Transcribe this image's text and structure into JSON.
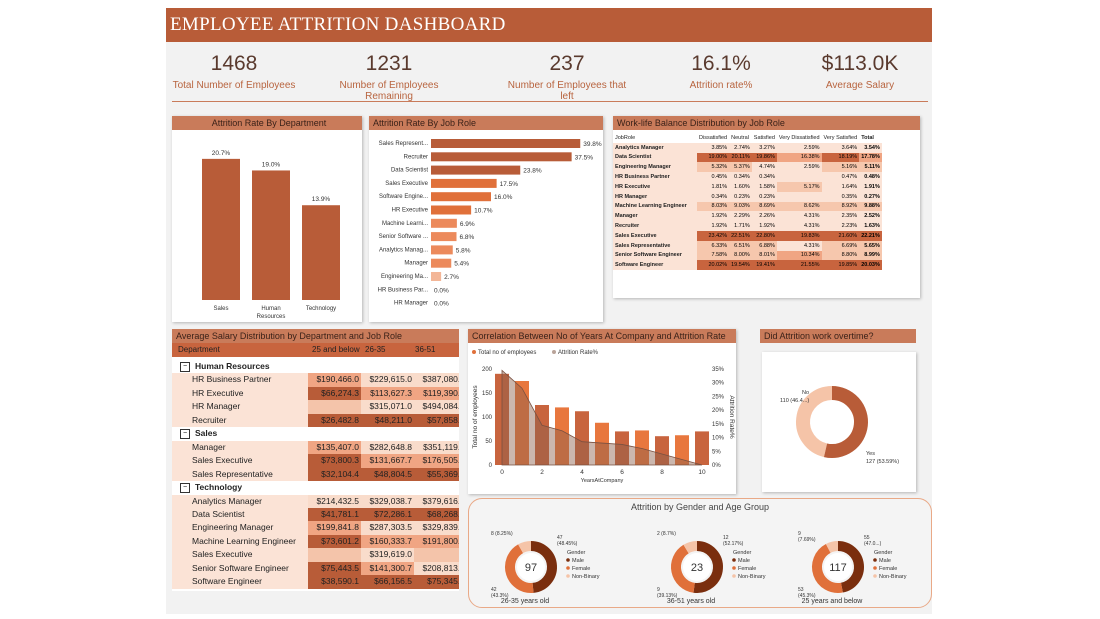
{
  "header": {
    "title": "EMPLOYEE ATTRITION DASHBOARD"
  },
  "kpis": [
    {
      "value": "1468",
      "label": "Total Number of Employees"
    },
    {
      "value": "1231",
      "label": "Number of Employees Remaining"
    },
    {
      "value": "237",
      "label": "Number of Employees that left"
    },
    {
      "value": "16.1%",
      "label": "Attrition rate%"
    },
    {
      "value": "$113.0K",
      "label": "Average Salary"
    }
  ],
  "colors": {
    "accent": "#b85c38",
    "dark": "#7a2e0e",
    "mid": "#e0703a",
    "light": "#f5c4a8",
    "pale": "#fbe3d6"
  },
  "chart_data": [
    {
      "type": "bar",
      "title": "Attrition Rate By Department",
      "categories": [
        "Sales",
        "Human Resources",
        "Technology"
      ],
      "category_lines": [
        [
          "Sales"
        ],
        [
          "Human",
          "Resources"
        ],
        [
          "Technology"
        ]
      ],
      "values": [
        20.7,
        19.0,
        13.9
      ],
      "labels": [
        "20.7%",
        "19.0%",
        "13.9%"
      ]
    },
    {
      "type": "bar",
      "orientation": "horizontal",
      "title": "Attrition Rate By Job Role",
      "categories": [
        "Sales Represent...",
        "Recruiter",
        "Data Scientist",
        "Sales Executive",
        "Software Engine...",
        "HR Executive",
        "Machine Learni...",
        "Senior Software ...",
        "Analytics Manag...",
        "Manager",
        "Engineering Ma...",
        "HR Business Par...",
        "HR Manager"
      ],
      "values": [
        39.8,
        37.5,
        23.8,
        17.5,
        16.0,
        10.7,
        6.9,
        6.8,
        5.8,
        5.4,
        2.7,
        0.0,
        0.0
      ],
      "labels": [
        "39.8%",
        "37.5%",
        "23.8%",
        "17.5%",
        "16.0%",
        "10.7%",
        "6.9%",
        "6.8%",
        "5.8%",
        "5.4%",
        "2.7%",
        "0.0%",
        "0.0%"
      ]
    },
    {
      "type": "table",
      "title": "Work-life Balance Distribution by Job Role",
      "columns": [
        "JobRole",
        "Dissatisfied",
        "Neutral",
        "Satisfied",
        "Very Dissatisfied",
        "Very Satisfied",
        "Total"
      ],
      "rows": [
        [
          "Analytics Manager",
          "3.85%",
          "2.74%",
          "3.27%",
          "2.59%",
          "3.64%",
          "3.54%"
        ],
        [
          "Data Scientist",
          "19.00%",
          "20.11%",
          "19.86%",
          "16.38%",
          "18.19%",
          "17.78%"
        ],
        [
          "Engineering Manager",
          "5.32%",
          "5.37%",
          "4.74%",
          "2.59%",
          "5.16%",
          "5.11%"
        ],
        [
          "HR Business Partner",
          "0.45%",
          "0.34%",
          "0.34%",
          "",
          "0.47%",
          "0.48%"
        ],
        [
          "HR Executive",
          "1.81%",
          "1.60%",
          "1.58%",
          "5.17%",
          "1.64%",
          "1.91%"
        ],
        [
          "HR Manager",
          "0.34%",
          "0.23%",
          "0.23%",
          "",
          "0.35%",
          "0.27%"
        ],
        [
          "Machine Learning Engineer",
          "8.03%",
          "9.03%",
          "8.69%",
          "8.62%",
          "8.92%",
          "9.88%"
        ],
        [
          "Manager",
          "1.92%",
          "2.29%",
          "2.26%",
          "4.31%",
          "2.35%",
          "2.52%"
        ],
        [
          "Recruiter",
          "1.92%",
          "1.71%",
          "1.92%",
          "4.31%",
          "2.23%",
          "1.63%"
        ],
        [
          "Sales Executive",
          "23.42%",
          "22.51%",
          "22.80%",
          "19.83%",
          "21.60%",
          "22.21%"
        ],
        [
          "Sales Representative",
          "6.33%",
          "6.51%",
          "6.88%",
          "4.31%",
          "6.69%",
          "5.65%"
        ],
        [
          "Senior Software Engineer",
          "7.58%",
          "8.00%",
          "8.01%",
          "10.34%",
          "8.80%",
          "8.99%"
        ],
        [
          "Software Engineer",
          "20.02%",
          "19.54%",
          "19.41%",
          "21.55%",
          "19.85%",
          "20.03%"
        ]
      ]
    },
    {
      "type": "table",
      "title": "Average Salary Distribution by Department and Job Role",
      "columns": [
        "Department",
        "25 and below",
        "26-35",
        "36-51"
      ],
      "rows": [
        {
          "kind": "group",
          "label": "Human Resources"
        },
        {
          "label": "HR Business Partner",
          "v": [
            "$190,466.0",
            "$229,615.0",
            "$387,080.3"
          ]
        },
        {
          "label": "HR Executive",
          "v": [
            "$66,274.3",
            "$113,627.3",
            "$119,390.6"
          ]
        },
        {
          "label": "HR Manager",
          "v": [
            "",
            "$315,071.0",
            "$494,084.0"
          ]
        },
        {
          "label": "Recruiter",
          "v": [
            "$26,482.8",
            "$48,211.0",
            "$57,858.3"
          ]
        },
        {
          "kind": "group",
          "label": "Sales"
        },
        {
          "label": "Manager",
          "v": [
            "$135,407.0",
            "$282,648.8",
            "$351,119.5"
          ]
        },
        {
          "label": "Sales Executive",
          "v": [
            "$73,800.3",
            "$131,667.7",
            "$176,505.9"
          ]
        },
        {
          "label": "Sales Representative",
          "v": [
            "$32,104.4",
            "$48,804.5",
            "$55,369.4"
          ]
        },
        {
          "kind": "group",
          "label": "Technology"
        },
        {
          "label": "Analytics Manager",
          "v": [
            "$214,432.5",
            "$329,038.7",
            "$379,616.2"
          ]
        },
        {
          "label": "Data Scientist",
          "v": [
            "$41,781.1",
            "$72,286.1",
            "$68,268.4"
          ]
        },
        {
          "label": "Engineering Manager",
          "v": [
            "$199,841.8",
            "$287,303.5",
            "$329,839.8"
          ]
        },
        {
          "label": "Machine Learning Engineer",
          "v": [
            "$73,601.2",
            "$160,333.7",
            "$191,800.3"
          ]
        },
        {
          "label": "Sales Executive",
          "v": [
            "",
            "$319,619.0",
            ""
          ]
        },
        {
          "label": "Senior Software Engineer",
          "v": [
            "$75,443.5",
            "$141,300.7",
            "$208,813.8"
          ]
        },
        {
          "label": "Software Engineer",
          "v": [
            "$38,590.1",
            "$66,156.5",
            "$75,345.4"
          ]
        }
      ]
    },
    {
      "type": "bar",
      "combo": "bar+area",
      "title": "Correlation Between No of Years At Company and Attrition Rate",
      "xlabel": "YearsAtCompany",
      "ylabel": "Total no of employees",
      "y2label": "Attrition Rate%",
      "x": [
        0,
        1,
        2,
        3,
        4,
        5,
        6,
        7,
        8,
        9,
        10
      ],
      "x_ticks": [
        0,
        2,
        4,
        6,
        8,
        10
      ],
      "ylim": [
        0,
        200
      ],
      "y_ticks": [
        0,
        50,
        100,
        150,
        200
      ],
      "y2lim": [
        0,
        35
      ],
      "y2_ticks": [
        "0%",
        "5%",
        "10%",
        "15%",
        "20%",
        "25%",
        "30%",
        "35%"
      ],
      "series": [
        {
          "name": "Total no of employees",
          "values": [
            190,
            175,
            125,
            120,
            112,
            88,
            70,
            72,
            60,
            62,
            70
          ]
        },
        {
          "name": "Attrition Rate%",
          "values": [
            34.5,
            28,
            14.5,
            12.5,
            8.5,
            8,
            7.5,
            6,
            4,
            2,
            0
          ]
        }
      ]
    },
    {
      "type": "pie",
      "title": "Did Attrition work overtime?",
      "slices": [
        {
          "label": "No",
          "detail": "110 (46.4...)",
          "value": 110
        },
        {
          "label": "Yes",
          "detail": "127 (53.59%)",
          "value": 127
        }
      ]
    },
    {
      "type": "pie",
      "title": "Attrition by Gender and Age Group",
      "legend_title": "Gender",
      "legend": [
        "Male",
        "Female",
        "Non-Binary"
      ],
      "groups": [
        {
          "label": "26-35 years old",
          "total": "97",
          "slices": [
            47,
            42,
            8
          ],
          "labels": [
            "47\n(48.45%)",
            "42\n(43.3%)",
            "8 (8.25%)"
          ]
        },
        {
          "label": "36-51 years old",
          "total": "23",
          "slices": [
            12,
            9,
            2
          ],
          "labels": [
            "12\n(52.17%)",
            "9\n(39.13%)",
            "2 (8.7%)"
          ]
        },
        {
          "label": "25 years and below",
          "total": "117",
          "slices": [
            55,
            53,
            9
          ],
          "labels": [
            "55\n(47.0...)",
            "53\n(45.3%)",
            "9\n(7.69%)"
          ]
        }
      ]
    }
  ]
}
